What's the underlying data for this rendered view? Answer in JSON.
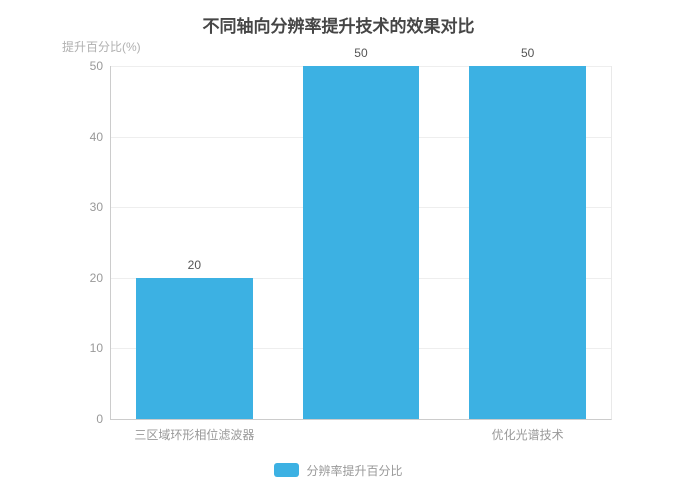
{
  "chart_data": {
    "type": "bar",
    "title": "不同轴向分辨率提升技术的效果对比",
    "y_axis_name": "提升百分比(%)",
    "categories": [
      "三区域环形相位滤波器",
      "",
      "优化光谱技术"
    ],
    "series": [
      {
        "name": "分辨率提升百分比",
        "values": [
          20,
          50,
          50
        ]
      }
    ],
    "value_labels": [
      "20",
      "50",
      "50"
    ],
    "y_ticks": [
      0,
      10,
      20,
      30,
      40,
      50
    ],
    "ylim": [
      0,
      50
    ],
    "grid": true,
    "legend_position": "bottom",
    "bar_color": "#3cb1e3",
    "bar_width_ratio": 0.7
  },
  "legend": {
    "items": [
      {
        "label": "分辨率提升百分比",
        "color": "#3cb1e3"
      }
    ]
  },
  "colors": {
    "bar": "#3cb1e3",
    "title_text": "#464646",
    "tick_label": "#999999",
    "axis_name": "#b0b0b0",
    "value_label": "#555555",
    "gridline": "#eeeeee",
    "axis_line": "#cccccc"
  }
}
